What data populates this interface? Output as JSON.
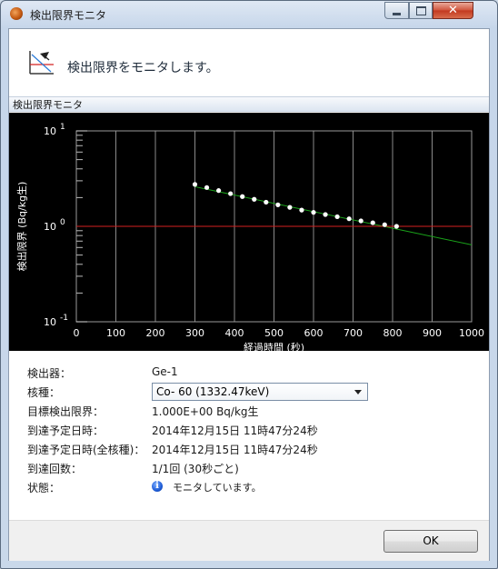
{
  "window": {
    "title": "検出限界モニタ"
  },
  "header": {
    "text": "検出限界をモニタします。"
  },
  "group": {
    "label": "検出限界モニタ"
  },
  "chart_data": {
    "type": "scatter",
    "title": "",
    "xlabel": "経過時間 (秒)",
    "ylabel": "検出限界 (Bq/kg生)",
    "xlim": [
      0,
      1000
    ],
    "ylim": [
      0.1,
      10
    ],
    "yscale": "log",
    "grid": true,
    "x_ticks": [
      "0",
      "100",
      "200",
      "300",
      "400",
      "500",
      "600",
      "700",
      "800",
      "900",
      "1000"
    ],
    "y_ticks": [
      {
        "value": 10,
        "base": "10",
        "exp": "1"
      },
      {
        "value": 1,
        "base": "10",
        "exp": "0"
      },
      {
        "value": 0.1,
        "base": "10",
        "exp": "-1"
      }
    ],
    "series": [
      {
        "kind": "points",
        "color": "#ffffff",
        "x": [
          300,
          330,
          360,
          390,
          420,
          450,
          480,
          510,
          540,
          570,
          600,
          630,
          660,
          690,
          720,
          750,
          780,
          810
        ],
        "y": [
          2.75,
          2.55,
          2.37,
          2.2,
          2.05,
          1.92,
          1.79,
          1.68,
          1.58,
          1.48,
          1.4,
          1.33,
          1.26,
          1.2,
          1.14,
          1.09,
          1.04,
          1.0
        ]
      },
      {
        "kind": "fit-line",
        "color": "#1aa31a",
        "x": [
          300,
          1000
        ],
        "y": [
          2.6,
          0.64
        ]
      },
      {
        "kind": "target-line",
        "color": "#d42020",
        "x": [
          0,
          1000
        ],
        "y": [
          1.0,
          1.0
        ]
      }
    ]
  },
  "info": {
    "detector": {
      "label": "検出器：",
      "value": "Ge-1"
    },
    "nuclide": {
      "label": "核種：",
      "value": "Co- 60 (1332.47keV)"
    },
    "target_limit": {
      "label": "目標検出限界：",
      "value": "1.000E+00 Bq/kg生"
    },
    "eta": {
      "label": "到達予定日時：",
      "value": "2014年12月15日 11時47分24秒"
    },
    "eta_all": {
      "label": "到達予定日時(全核種)：",
      "value": "2014年12月15日 11時47分24秒"
    },
    "count": {
      "label": "到達回数：",
      "value": "1/1回 (30秒ごと)"
    },
    "status": {
      "label": "状態：",
      "value": "モニタしています。",
      "icon": "info-icon"
    }
  },
  "footer": {
    "ok_label": "OK"
  },
  "colors": {
    "title_close": "#c2381f",
    "chart_bg": "#000000",
    "target_line": "#d42020",
    "fit_line": "#1aa31a"
  }
}
